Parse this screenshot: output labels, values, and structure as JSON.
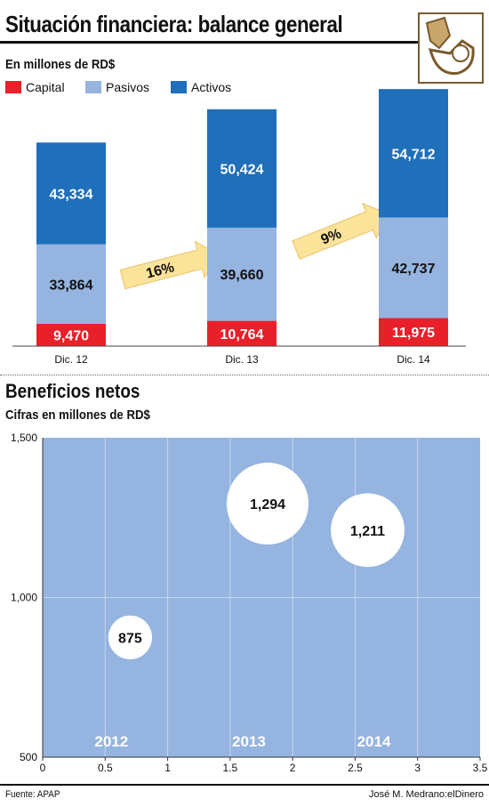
{
  "header": {
    "title": "Situación financiera: balance general"
  },
  "colors": {
    "capital": "#e8202a",
    "pasivos": "#95b4e0",
    "activos": "#1f6fba",
    "arrow": "#fbe39a",
    "bubble_bg": "#95b4e0",
    "bubble": "#ffffff"
  },
  "chart_data": [
    {
      "type": "bar",
      "subtitle": "En millones de RD$",
      "categories": [
        "Dic. 12",
        "Dic. 13",
        "Dic. 14"
      ],
      "series": [
        {
          "name": "Capital",
          "values": [
            9470,
            10764,
            11975
          ],
          "labels": [
            "9,470",
            "10,764",
            "11,975"
          ]
        },
        {
          "name": "Pasivos",
          "values": [
            33864,
            39660,
            42737
          ],
          "labels": [
            "33,864",
            "39,660",
            "42,737"
          ]
        },
        {
          "name": "Activos",
          "values": [
            43334,
            50424,
            54712
          ],
          "labels": [
            "43,334",
            "50,424",
            "54,712"
          ]
        }
      ],
      "annotations": [
        {
          "text": "16%",
          "between": [
            "Dic. 12",
            "Dic. 13"
          ]
        },
        {
          "text": "9%",
          "between": [
            "Dic. 13",
            "Dic. 14"
          ]
        }
      ],
      "legend_position": "top-left",
      "stacked": true
    },
    {
      "type": "scatter",
      "title": "Beneficios netos",
      "subtitle": "Cifras en millones de RD$",
      "xlim": [
        0,
        3.5
      ],
      "ylim": [
        500,
        1500
      ],
      "x_ticks": [
        "0",
        "0.5",
        "1",
        "1.5",
        "2",
        "2.5",
        "3",
        "3.5"
      ],
      "y_ticks": [
        "500",
        "1,000",
        "1,500"
      ],
      "points": [
        {
          "x": 0.7,
          "y": 875,
          "label": "875",
          "year": "2012"
        },
        {
          "x": 1.8,
          "y": 1294,
          "label": "1,294",
          "year": "2013"
        },
        {
          "x": 2.6,
          "y": 1211,
          "label": "1,211",
          "year": "2014"
        }
      ],
      "year_label_x": [
        0.55,
        1.65,
        2.65
      ],
      "grid": true
    }
  ],
  "footer": {
    "source": "Fuente: APAP",
    "credit": "José M. Medrano:elDinero"
  }
}
